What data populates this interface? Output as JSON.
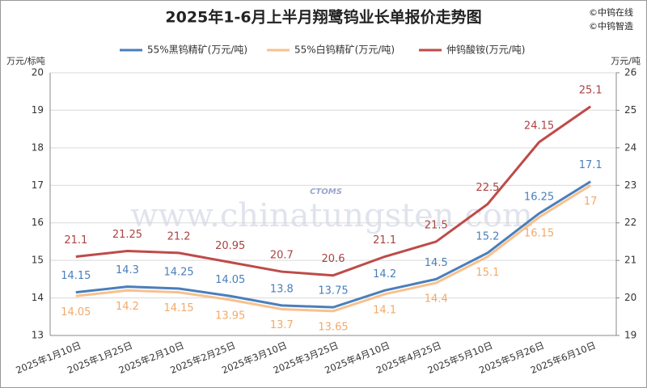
{
  "chart_data": {
    "type": "line",
    "title": "2025年1-6月上半月翔鹭钨业长单报价走势图",
    "copyright": [
      "©中钨在线",
      "©中钨智造"
    ],
    "watermark": "www.chinatungsten.com",
    "logo_text": "CTOMS",
    "y_label": "万元/标吨",
    "y2_label": "万元/吨",
    "categories": [
      "2025年1月10日",
      "2025年1月25日",
      "2025年2月10日",
      "2025年2月25日",
      "2025年3月10日",
      "2025年3月25日",
      "2025年4月10日",
      "2025年4月25日",
      "2025年5月10日",
      "2025年5月26日",
      "2025年6月10日"
    ],
    "series": [
      {
        "name": "55%黑钨精矿(万元/吨)",
        "color": "#4a7ebb",
        "label_color": "#4a7ebb",
        "label_pos": "above",
        "values": [
          14.15,
          14.3,
          14.25,
          14.05,
          13.8,
          13.75,
          14.2,
          14.5,
          15.2,
          16.25,
          17.1
        ]
      },
      {
        "name": "55%白钨精矿(万元/吨)",
        "color": "#f9c08d",
        "label_color": "#f2a96a",
        "label_pos": "below",
        "values": [
          14.05,
          14.2,
          14.15,
          13.95,
          13.7,
          13.65,
          14.1,
          14.4,
          15.1,
          16.15,
          17
        ]
      },
      {
        "name": "仲钨酸铵(万元/吨)",
        "color": "#be4b48",
        "label_color": "#a94442",
        "label_pos": "above",
        "axis": "y2",
        "values": [
          21.1,
          21.25,
          21.2,
          20.95,
          20.7,
          20.6,
          21.1,
          21.5,
          22.5,
          24.15,
          25.1
        ]
      }
    ],
    "ylim": [
      13,
      20
    ],
    "yticks": [
      13,
      14,
      15,
      16,
      17,
      18,
      19,
      20
    ],
    "y2lim": [
      19,
      26
    ],
    "y2ticks": [
      19,
      20,
      21,
      22,
      23,
      24,
      25,
      26
    ],
    "grid": true
  }
}
